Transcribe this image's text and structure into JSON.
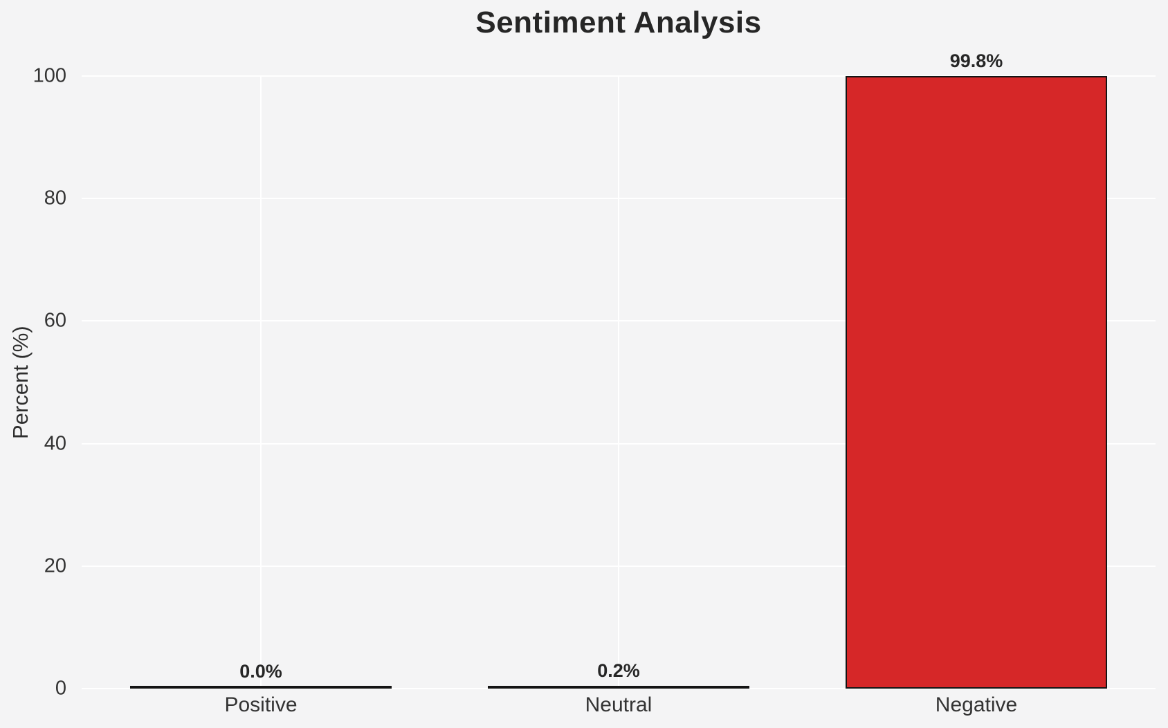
{
  "title": "Sentiment Analysis",
  "chart_data": {
    "type": "bar",
    "title": "Sentiment Analysis",
    "xlabel": "",
    "ylabel": "Percent (%)",
    "categories": [
      "Positive",
      "Neutral",
      "Negative"
    ],
    "values": [
      0.0,
      0.2,
      99.8
    ],
    "value_labels": [
      "0.0%",
      "0.2%",
      "99.8%"
    ],
    "ylim": [
      0,
      100
    ],
    "yticks": [
      0,
      20,
      40,
      60,
      80,
      100
    ],
    "grid": true,
    "legend": "none",
    "colors": {
      "bar_fill": "#d62728",
      "bar_edge": "#141414",
      "background": "#f4f4f5",
      "gridline": "#ffffff",
      "title_text": "#262626",
      "tick_text": "#333333"
    }
  }
}
